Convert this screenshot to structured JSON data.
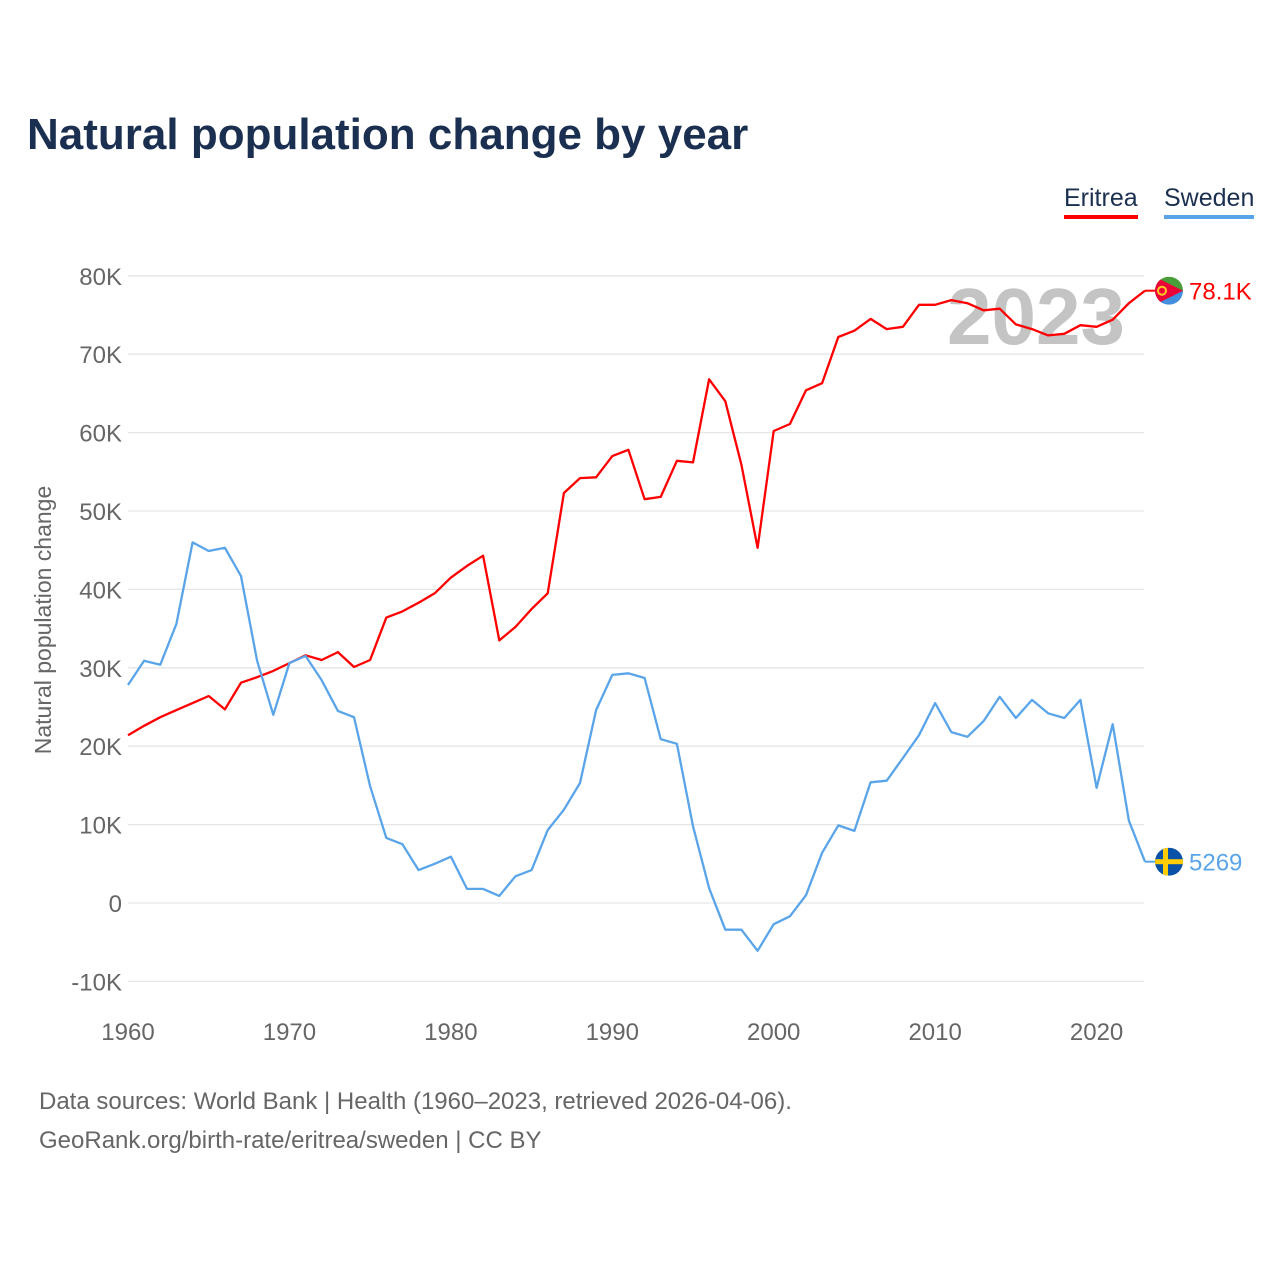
{
  "header": {
    "title": "Natural population change by year"
  },
  "legend": [
    {
      "label": "Eritrea",
      "color": "#ff0000"
    },
    {
      "label": "Sweden",
      "color": "#5aa5ea"
    }
  ],
  "footer": {
    "line1": "Data sources: World Bank | Health (1960–2023, retrieved 2026-04-06).",
    "line2": "GeoRank.org/birth-rate/eritrea/sweden | CC BY"
  },
  "chart_data": {
    "type": "line",
    "title": "Natural population change by year",
    "xlabel": "",
    "ylabel": "Natural population change",
    "xlim": [
      1960,
      2023
    ],
    "ylim": [
      -10000,
      80000
    ],
    "xticks": [
      1960,
      1970,
      1980,
      1990,
      2000,
      2010,
      2020
    ],
    "xtick_labels": [
      "1960",
      "1970",
      "1980",
      "1990",
      "2000",
      "2010",
      "2020"
    ],
    "yticks": [
      -10000,
      0,
      10000,
      20000,
      30000,
      40000,
      50000,
      60000,
      70000,
      80000
    ],
    "ytick_labels": [
      "-10K",
      "0",
      "10K",
      "20K",
      "30K",
      "40K",
      "50K",
      "60K",
      "70K",
      "80K"
    ],
    "grid": true,
    "legend_position": "top-right",
    "year_annotation": "2023",
    "x_start": 1960,
    "series": [
      {
        "name": "Eritrea",
        "color": "#ff0000",
        "end_label": "78.1K",
        "flag": "eritrea-flag",
        "values": [
          21400,
          22600,
          23700,
          24600,
          25500,
          26400,
          24700,
          28100,
          28800,
          29600,
          30600,
          31600,
          31000,
          32000,
          30100,
          31000,
          36400,
          37200,
          38300,
          39500,
          41500,
          43000,
          44300,
          33500,
          35200,
          37500,
          39500,
          52300,
          54200,
          54300,
          57000,
          57800,
          51500,
          51800,
          56400,
          56200,
          66800,
          64000,
          55900,
          45300,
          60200,
          61100,
          65400,
          66300,
          72200,
          73000,
          74500,
          73200,
          73500,
          76300,
          76300,
          76900,
          76500,
          75600,
          75800,
          73800,
          73200,
          72400,
          72600,
          73700,
          73500,
          74400,
          76500,
          78100
        ]
      },
      {
        "name": "Sweden",
        "color": "#5aa5ea",
        "end_label": "5269",
        "flag": "sweden-flag",
        "values": [
          27800,
          30900,
          30400,
          35600,
          46000,
          44900,
          45300,
          41700,
          30900,
          24000,
          30600,
          31500,
          28400,
          24500,
          23700,
          14900,
          8300,
          7500,
          4200,
          5000,
          5900,
          1800,
          1800,
          900,
          3400,
          4200,
          9300,
          11900,
          15300,
          24600,
          29100,
          29300,
          28700,
          20900,
          20300,
          9800,
          1900,
          -3400,
          -3400,
          -6100,
          -2700,
          -1700,
          1000,
          6400,
          9900,
          9200,
          15400,
          15600,
          18500,
          21400,
          25500,
          21800,
          21200,
          23200,
          26300,
          23600,
          25900,
          24200,
          23600,
          25900,
          14700,
          22800,
          10500,
          5269
        ]
      }
    ]
  }
}
